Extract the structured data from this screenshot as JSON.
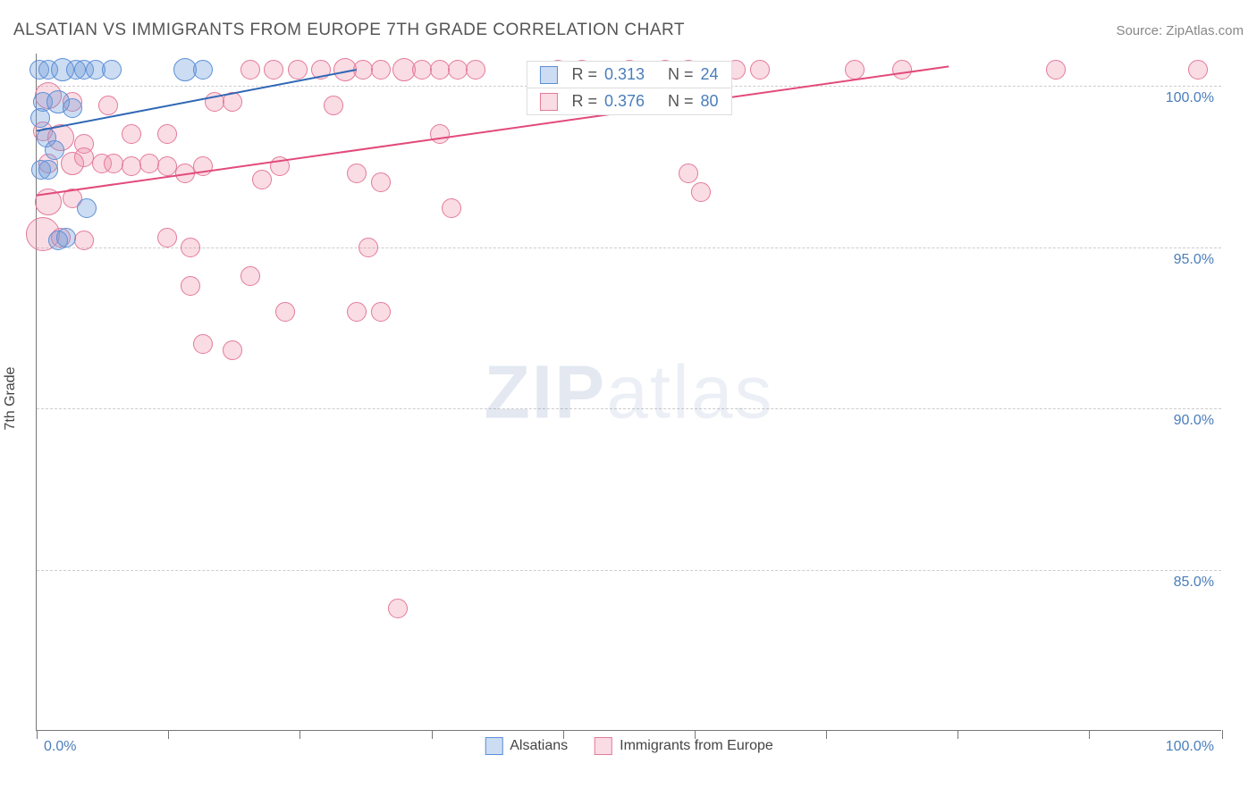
{
  "header": {
    "title": "ALSATIAN VS IMMIGRANTS FROM EUROPE 7TH GRADE CORRELATION CHART",
    "source": "Source: ZipAtlas.com"
  },
  "chart": {
    "type": "scatter",
    "y_axis_title": "7th Grade",
    "watermark": {
      "part1": "ZIP",
      "part2": "atlas"
    },
    "xlim": [
      0,
      100
    ],
    "ylim": [
      80,
      101
    ],
    "x_labels": {
      "min": "0.0%",
      "max": "100.0%"
    },
    "y_ticks": [
      {
        "value": 100,
        "label": "100.0%"
      },
      {
        "value": 95,
        "label": "95.0%"
      },
      {
        "value": 90,
        "label": "90.0%"
      },
      {
        "value": 85,
        "label": "85.0%"
      }
    ],
    "x_tick_positions": [
      0,
      11.1,
      22.2,
      33.3,
      44.4,
      55.5,
      66.6,
      77.7,
      88.8,
      100
    ],
    "background_color": "#ffffff",
    "grid_color": "#cccccc",
    "axis_color": "#777777",
    "label_color": "#4a7ebb",
    "label_fontsize": 16,
    "title_fontsize": 19,
    "title_color": "#555555",
    "series": {
      "a": {
        "name": "Alsatians",
        "fill": "rgba(108,156,218,0.35)",
        "stroke": "#5b8fd6",
        "line_color": "#2f67b5",
        "line_width": 2,
        "trend": {
          "x1": 0,
          "y1": 98.6,
          "x2": 27,
          "y2": 100.5
        },
        "stats": {
          "R": "0.313",
          "N": "24"
        },
        "points": [
          {
            "x": 0.2,
            "y": 100.5,
            "r": 10
          },
          {
            "x": 1.0,
            "y": 100.5,
            "r": 10
          },
          {
            "x": 2.2,
            "y": 100.5,
            "r": 12
          },
          {
            "x": 3.3,
            "y": 100.5,
            "r": 10
          },
          {
            "x": 4.0,
            "y": 100.5,
            "r": 10
          },
          {
            "x": 5.0,
            "y": 100.5,
            "r": 10
          },
          {
            "x": 6.3,
            "y": 100.5,
            "r": 10
          },
          {
            "x": 12.5,
            "y": 100.5,
            "r": 12
          },
          {
            "x": 14.0,
            "y": 100.5,
            "r": 10
          },
          {
            "x": 0.5,
            "y": 99.5,
            "r": 10
          },
          {
            "x": 1.8,
            "y": 99.5,
            "r": 12
          },
          {
            "x": 3.0,
            "y": 99.3,
            "r": 10
          },
          {
            "x": 0.3,
            "y": 99.0,
            "r": 10
          },
          {
            "x": 0.8,
            "y": 98.4,
            "r": 10
          },
          {
            "x": 1.5,
            "y": 98.0,
            "r": 10
          },
          {
            "x": 0.4,
            "y": 97.4,
            "r": 10
          },
          {
            "x": 1.0,
            "y": 97.4,
            "r": 10
          },
          {
            "x": 4.2,
            "y": 96.2,
            "r": 10
          },
          {
            "x": 1.8,
            "y": 95.2,
            "r": 10
          },
          {
            "x": 2.5,
            "y": 95.3,
            "r": 10
          }
        ]
      },
      "b": {
        "name": "Immigrants from Europe",
        "fill": "rgba(238,138,165,0.30)",
        "stroke": "#e37a9a",
        "line_color": "#e24a7a",
        "line_width": 2,
        "trend": {
          "x1": 0,
          "y1": 96.6,
          "x2": 77,
          "y2": 100.6
        },
        "stats": {
          "R": "0.376",
          "N": "80"
        },
        "points": [
          {
            "x": 18,
            "y": 100.5,
            "r": 10
          },
          {
            "x": 20,
            "y": 100.5,
            "r": 10
          },
          {
            "x": 22,
            "y": 100.5,
            "r": 10
          },
          {
            "x": 24,
            "y": 100.5,
            "r": 10
          },
          {
            "x": 26,
            "y": 100.5,
            "r": 12
          },
          {
            "x": 27.5,
            "y": 100.5,
            "r": 10
          },
          {
            "x": 29,
            "y": 100.5,
            "r": 10
          },
          {
            "x": 31,
            "y": 100.5,
            "r": 12
          },
          {
            "x": 32.5,
            "y": 100.5,
            "r": 10
          },
          {
            "x": 34,
            "y": 100.5,
            "r": 10
          },
          {
            "x": 35.5,
            "y": 100.5,
            "r": 10
          },
          {
            "x": 37,
            "y": 100.5,
            "r": 10
          },
          {
            "x": 44,
            "y": 100.5,
            "r": 10
          },
          {
            "x": 46,
            "y": 100.5,
            "r": 10
          },
          {
            "x": 50,
            "y": 100.5,
            "r": 10
          },
          {
            "x": 53,
            "y": 100.5,
            "r": 10
          },
          {
            "x": 55,
            "y": 100.5,
            "r": 10
          },
          {
            "x": 59,
            "y": 100.5,
            "r": 10
          },
          {
            "x": 61,
            "y": 100.5,
            "r": 10
          },
          {
            "x": 69,
            "y": 100.5,
            "r": 10
          },
          {
            "x": 73,
            "y": 100.5,
            "r": 10
          },
          {
            "x": 86,
            "y": 100.5,
            "r": 10
          },
          {
            "x": 98,
            "y": 100.5,
            "r": 10
          },
          {
            "x": 1,
            "y": 99.7,
            "r": 14
          },
          {
            "x": 3,
            "y": 99.5,
            "r": 10
          },
          {
            "x": 6,
            "y": 99.4,
            "r": 10
          },
          {
            "x": 15,
            "y": 99.5,
            "r": 10
          },
          {
            "x": 16.5,
            "y": 99.5,
            "r": 10
          },
          {
            "x": 25,
            "y": 99.4,
            "r": 10
          },
          {
            "x": 0.5,
            "y": 98.6,
            "r": 10
          },
          {
            "x": 2,
            "y": 98.4,
            "r": 14
          },
          {
            "x": 4,
            "y": 98.2,
            "r": 10
          },
          {
            "x": 8,
            "y": 98.5,
            "r": 10
          },
          {
            "x": 11,
            "y": 98.5,
            "r": 10
          },
          {
            "x": 34,
            "y": 98.5,
            "r": 10
          },
          {
            "x": 1,
            "y": 97.6,
            "r": 10
          },
          {
            "x": 3,
            "y": 97.6,
            "r": 12
          },
          {
            "x": 4,
            "y": 97.8,
            "r": 10
          },
          {
            "x": 5.5,
            "y": 97.6,
            "r": 10
          },
          {
            "x": 6.5,
            "y": 97.6,
            "r": 10
          },
          {
            "x": 8,
            "y": 97.5,
            "r": 10
          },
          {
            "x": 9.5,
            "y": 97.6,
            "r": 10
          },
          {
            "x": 11,
            "y": 97.5,
            "r": 10
          },
          {
            "x": 12.5,
            "y": 97.3,
            "r": 10
          },
          {
            "x": 14,
            "y": 97.5,
            "r": 10
          },
          {
            "x": 19,
            "y": 97.1,
            "r": 10
          },
          {
            "x": 20.5,
            "y": 97.5,
            "r": 10
          },
          {
            "x": 27,
            "y": 97.3,
            "r": 10
          },
          {
            "x": 29,
            "y": 97.0,
            "r": 10
          },
          {
            "x": 55,
            "y": 97.3,
            "r": 10
          },
          {
            "x": 1,
            "y": 96.4,
            "r": 14
          },
          {
            "x": 3,
            "y": 96.5,
            "r": 10
          },
          {
            "x": 35,
            "y": 96.2,
            "r": 10
          },
          {
            "x": 56,
            "y": 96.7,
            "r": 10
          },
          {
            "x": 0.5,
            "y": 95.4,
            "r": 18
          },
          {
            "x": 2,
            "y": 95.3,
            "r": 10
          },
          {
            "x": 4,
            "y": 95.2,
            "r": 10
          },
          {
            "x": 11,
            "y": 95.3,
            "r": 10
          },
          {
            "x": 13,
            "y": 95.0,
            "r": 10
          },
          {
            "x": 28,
            "y": 95.0,
            "r": 10
          },
          {
            "x": 18,
            "y": 94.1,
            "r": 10
          },
          {
            "x": 13,
            "y": 93.8,
            "r": 10
          },
          {
            "x": 21,
            "y": 93.0,
            "r": 10
          },
          {
            "x": 27,
            "y": 93.0,
            "r": 10
          },
          {
            "x": 29,
            "y": 93.0,
            "r": 10
          },
          {
            "x": 14,
            "y": 92.0,
            "r": 10
          },
          {
            "x": 16.5,
            "y": 91.8,
            "r": 10
          },
          {
            "x": 30.5,
            "y": 83.8,
            "r": 10
          }
        ]
      }
    },
    "legend": {
      "a": "Alsatians",
      "b": "Immigrants from Europe"
    },
    "stats_labels": {
      "R": "R =",
      "N": "N ="
    }
  }
}
